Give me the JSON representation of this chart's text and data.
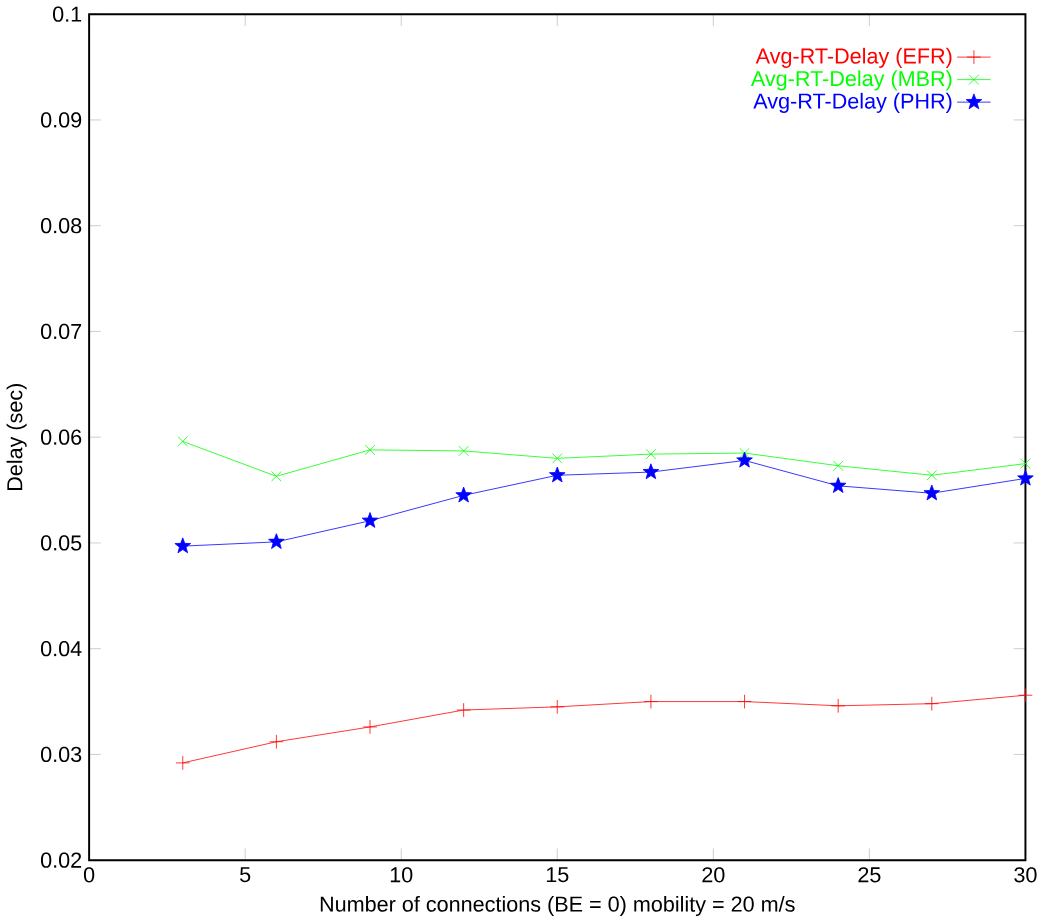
{
  "chart_data": {
    "type": "line",
    "xlabel": "Number of connections (BE = 0) mobility = 20 m/s",
    "ylabel": "Delay (sec)",
    "x": [
      3,
      6,
      9,
      12,
      15,
      18,
      21,
      24,
      27,
      30
    ],
    "series": [
      {
        "name": "Avg-RT-Delay (EFR)",
        "color": "#ff0000",
        "marker": "plus",
        "values": [
          0.0292,
          0.0312,
          0.0326,
          0.0342,
          0.0345,
          0.035,
          0.035,
          0.0346,
          0.0348,
          0.0356
        ]
      },
      {
        "name": "Avg-RT-Delay (MBR)",
        "color": "#00ff00",
        "marker": "cross",
        "values": [
          0.0596,
          0.0563,
          0.0588,
          0.0587,
          0.058,
          0.0584,
          0.0585,
          0.0573,
          0.0564,
          0.0575
        ]
      },
      {
        "name": "Avg-RT-Delay (PHR)",
        "color": "#0000ff",
        "marker": "star",
        "values": [
          0.0497,
          0.0501,
          0.0521,
          0.0545,
          0.0564,
          0.0567,
          0.0578,
          0.0554,
          0.0547,
          0.0561
        ]
      }
    ],
    "xlim": [
      0,
      30
    ],
    "xticks": [
      0,
      5,
      10,
      15,
      20,
      25,
      30
    ],
    "ylim": [
      0.02,
      0.1
    ],
    "yticks": [
      0.02,
      0.03,
      0.04,
      0.05,
      0.06,
      0.07,
      0.08,
      0.09,
      0.1
    ],
    "grid": false,
    "legend": "top right",
    "line_style": "solid"
  }
}
